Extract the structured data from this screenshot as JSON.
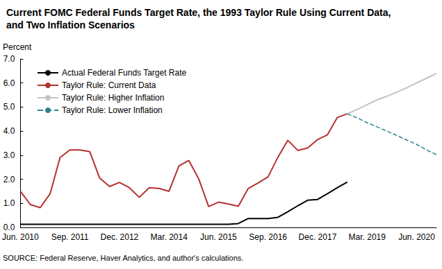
{
  "chart_data": {
    "type": "line",
    "title": "Current FOMC Federal Funds Target Rate, the 1993 Taylor Rule Using Current Data, and Two Inflation Scenarios",
    "y_label": "Percent",
    "source": "SOURCE: Federal Reserve, Haver Analytics, and author's calculations.",
    "categories": [
      "Jun. 2010",
      null,
      null,
      null,
      null,
      "Sep. 2011",
      null,
      null,
      null,
      null,
      "Dec. 2012",
      null,
      null,
      null,
      null,
      "Mar. 2014",
      null,
      null,
      null,
      null,
      "Jun. 2015",
      null,
      null,
      null,
      null,
      "Sep. 2016",
      null,
      null,
      null,
      null,
      "Dec. 2017",
      null,
      null,
      null,
      null,
      "Mar. 2019",
      null,
      null,
      null,
      null,
      "Jun. 2020",
      null,
      null
    ],
    "series": [
      {
        "name": "Actual Federal Funds Target Rate",
        "color": "#000000",
        "line_style": "solid",
        "values": [
          0.13,
          0.13,
          0.13,
          0.13,
          0.13,
          0.13,
          0.13,
          0.13,
          0.13,
          0.13,
          0.13,
          0.13,
          0.13,
          0.13,
          0.13,
          0.13,
          0.13,
          0.13,
          0.13,
          0.13,
          0.13,
          0.13,
          0.16,
          0.37,
          0.37,
          0.37,
          0.42,
          0.65,
          0.9,
          1.13,
          1.16,
          1.4,
          1.65,
          1.88,
          null,
          null,
          null,
          null,
          null,
          null,
          null,
          null,
          null
        ]
      },
      {
        "name": "Taylor Rule: Current Data",
        "color": "#b5312f",
        "line_style": "solid",
        "values": [
          1.5,
          0.95,
          0.82,
          1.4,
          2.9,
          3.22,
          3.22,
          3.15,
          2.05,
          1.7,
          1.87,
          1.65,
          1.25,
          1.65,
          1.62,
          1.5,
          2.55,
          2.78,
          2.02,
          0.87,
          1.05,
          0.97,
          0.88,
          1.62,
          1.85,
          2.1,
          2.92,
          3.62,
          3.2,
          3.3,
          3.65,
          3.85,
          4.57,
          4.72,
          null,
          null,
          null,
          null,
          null,
          null,
          null,
          null,
          null
        ]
      },
      {
        "name": "Taylor Rule: Higher Inflation",
        "color": "#c3c3c3",
        "line_style": "solid",
        "values": [
          null,
          null,
          null,
          null,
          null,
          null,
          null,
          null,
          null,
          null,
          null,
          null,
          null,
          null,
          null,
          null,
          null,
          null,
          null,
          null,
          null,
          null,
          null,
          null,
          null,
          null,
          null,
          null,
          null,
          null,
          null,
          null,
          null,
          4.72,
          4.9,
          5.1,
          5.3,
          5.45,
          5.62,
          5.8,
          6.0,
          6.2,
          6.4
        ]
      },
      {
        "name": "Taylor Rule: Lower Inflation",
        "color": "#2b8190",
        "line_style": "dashed",
        "values": [
          null,
          null,
          null,
          null,
          null,
          null,
          null,
          null,
          null,
          null,
          null,
          null,
          null,
          null,
          null,
          null,
          null,
          null,
          null,
          null,
          null,
          null,
          null,
          null,
          null,
          null,
          null,
          null,
          null,
          null,
          null,
          null,
          null,
          4.72,
          4.55,
          4.35,
          4.18,
          4.0,
          3.82,
          3.63,
          3.45,
          3.22,
          3.02
        ]
      }
    ],
    "ylim": [
      0,
      7
    ],
    "yticks": [
      {
        "value": 0,
        "label": "0.0"
      },
      {
        "value": 1,
        "label": "1.0"
      },
      {
        "value": 2,
        "label": "2.0"
      },
      {
        "value": 3,
        "label": "3.0"
      },
      {
        "value": 4,
        "label": "4.0"
      },
      {
        "value": 5,
        "label": "5.0"
      },
      {
        "value": 6,
        "label": "6.0"
      },
      {
        "value": 7,
        "label": "7.0"
      }
    ],
    "grid": false,
    "legend": "upper left"
  }
}
